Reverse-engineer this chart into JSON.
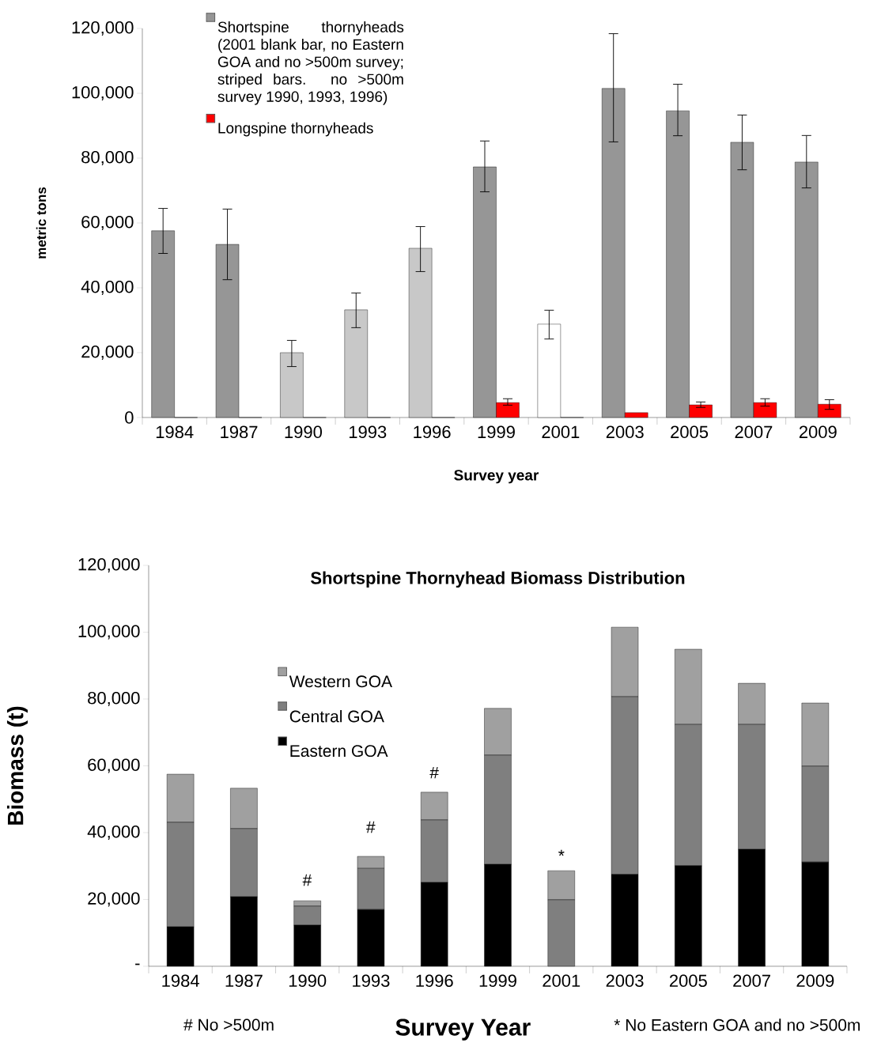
{
  "chart_data": [
    {
      "type": "bar",
      "xlabel": "Survey year",
      "ylabel": "metric tons",
      "categories": [
        "1984",
        "1987",
        "1990",
        "1993",
        "1996",
        "1999",
        "2001",
        "2003",
        "2005",
        "2007",
        "2009"
      ],
      "ylim": [
        0,
        120000
      ],
      "yticks": [
        0,
        {
          "value": 20000,
          "label": "20,000"
        },
        {
          "value": 40000,
          "label": "40,000"
        },
        {
          "value": 60000,
          "label": "60,000"
        },
        {
          "value": 80000,
          "label": "80,000"
        },
        {
          "value": 100000,
          "label": "100,000"
        },
        {
          "value": 120000,
          "label": "120,000"
        }
      ],
      "legend": "top left",
      "series": [
        {
          "name": "Shortspine thornyheads (2001 blank bar, no Eastern GOA and no >500m survey; striped bars. no >500m survey 1990, 1993, 1996)",
          "color": "#969696",
          "colors": [
            "#969696",
            "#969696",
            "#c8c8c8",
            "#c8c8c8",
            "#c8c8c8",
            "#969696",
            "#ffffff",
            "#969696",
            "#969696",
            "#969696",
            "#969696"
          ],
          "values": [
            57600,
            53400,
            20000,
            33200,
            52200,
            77300,
            28800,
            101500,
            94600,
            84900,
            78800
          ],
          "errors": [
            [
              50500,
              64600
            ],
            [
              42400,
              64400
            ],
            [
              15600,
              23900
            ],
            [
              27600,
              38500
            ],
            [
              44900,
              59000
            ],
            [
              69500,
              85400
            ],
            [
              24100,
              33200
            ],
            [
              84900,
              118500
            ],
            [
              86800,
              102900
            ],
            [
              76300,
              93400
            ],
            [
              70700,
              87100
            ]
          ]
        },
        {
          "name": "Longspine thornyheads",
          "color": "#ff0000",
          "values": [
            0,
            0,
            0,
            0,
            0,
            4600,
            0,
            1500,
            3900,
            4600,
            4100
          ],
          "errors": [
            null,
            null,
            null,
            null,
            null,
            [
              3700,
              5900
            ],
            null,
            null,
            [
              3000,
              4900
            ],
            [
              3400,
              5900
            ],
            [
              2400,
              5600
            ]
          ]
        }
      ]
    },
    {
      "type": "bar",
      "stacked": true,
      "title": "Shortspine Thornyhead Biomass Distribution",
      "xlabel": "Survey Year",
      "ylabel": "Biomass (t)",
      "categories": [
        "1984",
        "1987",
        "1990",
        "1993",
        "1996",
        "1999",
        "2001",
        "2003",
        "2005",
        "2007",
        "2009"
      ],
      "ylim": [
        0,
        120000
      ],
      "yticks": [
        {
          "value": 0,
          "label": "-"
        },
        {
          "value": 20000,
          "label": "20,000"
        },
        {
          "value": 40000,
          "label": "40,000"
        },
        {
          "value": 60000,
          "label": "60,000"
        },
        {
          "value": 80000,
          "label": "80,000"
        },
        {
          "value": 100000,
          "label": "100,000"
        },
        {
          "value": 120000,
          "label": "120,000"
        }
      ],
      "legend": "left",
      "series": [
        {
          "name": "Eastern GOA",
          "color": "#000000",
          "values": [
            11800,
            20800,
            12300,
            17000,
            25100,
            30500,
            0,
            27500,
            30100,
            35000,
            31200
          ]
        },
        {
          "name": "Central GOA",
          "color": "#7f7f7f",
          "values": [
            31300,
            20400,
            5700,
            12300,
            18700,
            32700,
            19900,
            53200,
            42300,
            37400,
            28700
          ]
        },
        {
          "name": "Western GOA",
          "color": "#a0a0a0",
          "values": [
            14400,
            12100,
            1600,
            3600,
            8300,
            14000,
            8700,
            20800,
            22500,
            12300,
            18900
          ]
        }
      ],
      "annotations": [
        "#",
        "#",
        "#",
        "*",
        "# No >500m",
        "* No Eastern GOA and no >500m"
      ]
    }
  ]
}
